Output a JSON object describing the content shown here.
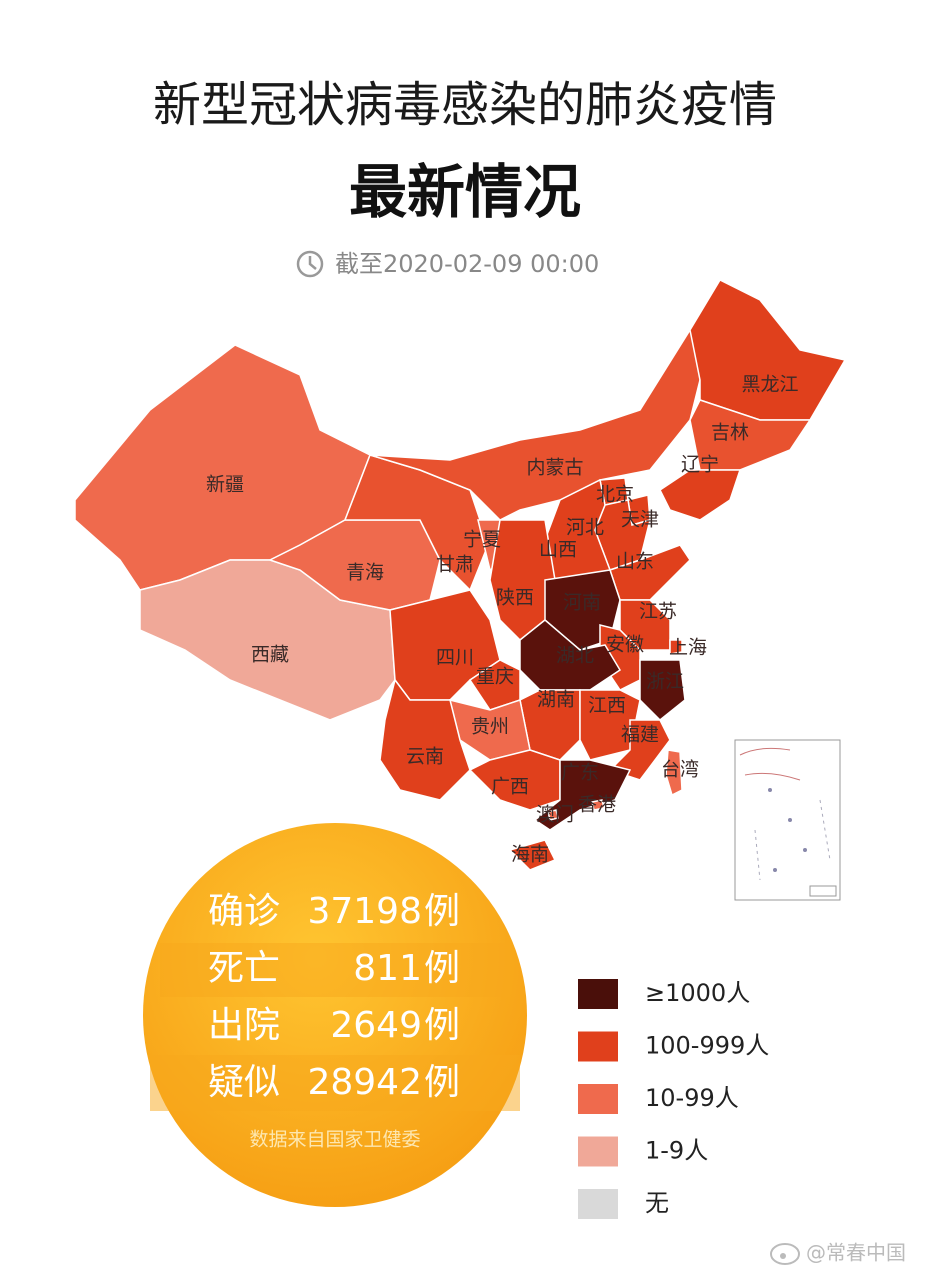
{
  "header": {
    "title": "新型冠状病毒感染的肺炎疫情",
    "subtitle": "最新情况",
    "timestamp": "截至2020-02-09 00:00"
  },
  "map": {
    "provinces": [
      {
        "label": "新疆",
        "color": "#ef6a4d"
      },
      {
        "label": "西藏",
        "color": "#f0a898"
      },
      {
        "label": "青海",
        "color": "#ef6a4d"
      },
      {
        "label": "甘肃",
        "color": "#e8522f"
      },
      {
        "label": "内蒙古",
        "color": "#e8522f"
      },
      {
        "label": "黑龙江",
        "color": "#e0401c"
      },
      {
        "label": "吉林",
        "color": "#e8522f"
      },
      {
        "label": "辽宁",
        "color": "#e0401c"
      },
      {
        "label": "北京",
        "color": "#e0401c"
      },
      {
        "label": "天津",
        "color": "#e0401c"
      },
      {
        "label": "河北",
        "color": "#e0401c"
      },
      {
        "label": "山西",
        "color": "#e0401c"
      },
      {
        "label": "山东",
        "color": "#e0401c"
      },
      {
        "label": "宁夏",
        "color": "#ef6a4d"
      },
      {
        "label": "陕西",
        "color": "#e0401c"
      },
      {
        "label": "河南",
        "color": "#5a120c"
      },
      {
        "label": "江苏",
        "color": "#e0401c"
      },
      {
        "label": "安徽",
        "color": "#e0401c"
      },
      {
        "label": "上海",
        "color": "#e0401c"
      },
      {
        "label": "湖北",
        "color": "#5a120c"
      },
      {
        "label": "浙江",
        "color": "#5a120c"
      },
      {
        "label": "四川",
        "color": "#e0401c"
      },
      {
        "label": "重庆",
        "color": "#e0401c"
      },
      {
        "label": "湖南",
        "color": "#e0401c"
      },
      {
        "label": "江西",
        "color": "#e0401c"
      },
      {
        "label": "贵州",
        "color": "#ef6a4d"
      },
      {
        "label": "福建",
        "color": "#e0401c"
      },
      {
        "label": "云南",
        "color": "#e0401c"
      },
      {
        "label": "广西",
        "color": "#e0401c"
      },
      {
        "label": "广东",
        "color": "#5a120c"
      },
      {
        "label": "香港",
        "color": "#ef6a4d"
      },
      {
        "label": "澳门",
        "color": "#ef6a4d"
      },
      {
        "label": "台湾",
        "color": "#ef6a4d"
      },
      {
        "label": "海南",
        "color": "#e0401c"
      }
    ]
  },
  "stats": {
    "rows": [
      {
        "label": "确诊",
        "value": 37198,
        "unit": "例"
      },
      {
        "label": "死亡",
        "value": 811,
        "unit": "例"
      },
      {
        "label": "出院",
        "value": 2649,
        "unit": "例"
      },
      {
        "label": "疑似",
        "value": 28942,
        "unit": "例"
      }
    ],
    "source": "数据来自国家卫健委"
  },
  "legend": [
    {
      "label": "≥1000人",
      "color": "#4a0f0a"
    },
    {
      "label": "100-999人",
      "color": "#e0401c"
    },
    {
      "label": "10-99人",
      "color": "#ef6a4d"
    },
    {
      "label": "1-9人",
      "color": "#f0a898"
    },
    {
      "label": "无",
      "color": "#d9d9d9"
    }
  ],
  "watermark": "@常春中国"
}
